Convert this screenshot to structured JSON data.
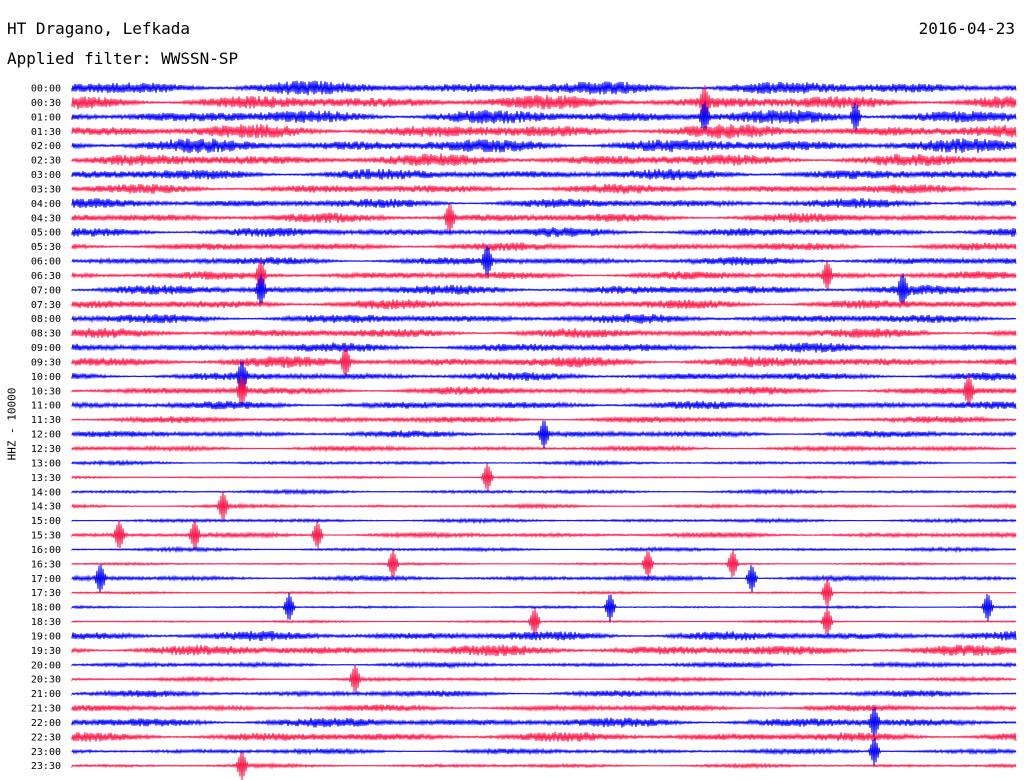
{
  "header": {
    "station": "HT Dragano, Lefkada",
    "date": "2016-04-23",
    "filter": "Applied filter: WWSSN-SP"
  },
  "channel_label": "HHZ - 10000",
  "colors": {
    "even_hour": "#0000ff",
    "half_hour": "#ff1a4b"
  },
  "rows": [
    {
      "time": "00:00",
      "activity": 9,
      "events": []
    },
    {
      "time": "00:30",
      "activity": 9,
      "events": [
        0.67
      ]
    },
    {
      "time": "01:00",
      "activity": 9,
      "events": [
        0.67,
        0.83
      ]
    },
    {
      "time": "01:30",
      "activity": 9,
      "events": []
    },
    {
      "time": "02:00",
      "activity": 9,
      "events": []
    },
    {
      "time": "02:30",
      "activity": 8,
      "events": []
    },
    {
      "time": "03:00",
      "activity": 7,
      "events": []
    },
    {
      "time": "03:30",
      "activity": 6,
      "events": []
    },
    {
      "time": "04:00",
      "activity": 6,
      "events": []
    },
    {
      "time": "04:30",
      "activity": 6,
      "events": [
        0.4
      ]
    },
    {
      "time": "05:00",
      "activity": 6,
      "events": []
    },
    {
      "time": "05:30",
      "activity": 5,
      "events": []
    },
    {
      "time": "06:00",
      "activity": 5,
      "events": [
        0.44
      ]
    },
    {
      "time": "06:30",
      "activity": 5,
      "events": [
        0.2,
        0.8
      ]
    },
    {
      "time": "07:00",
      "activity": 6,
      "events": [
        0.2,
        0.88
      ]
    },
    {
      "time": "07:30",
      "activity": 6,
      "events": []
    },
    {
      "time": "08:00",
      "activity": 6,
      "events": []
    },
    {
      "time": "08:30",
      "activity": 6,
      "events": []
    },
    {
      "time": "09:00",
      "activity": 6,
      "events": []
    },
    {
      "time": "09:30",
      "activity": 7,
      "events": [
        0.29
      ]
    },
    {
      "time": "10:00",
      "activity": 5,
      "events": [
        0.18
      ]
    },
    {
      "time": "10:30",
      "activity": 5,
      "events": [
        0.18,
        0.95
      ]
    },
    {
      "time": "11:00",
      "activity": 5,
      "events": []
    },
    {
      "time": "11:30",
      "activity": 4,
      "events": []
    },
    {
      "time": "12:00",
      "activity": 4,
      "events": [
        0.5
      ]
    },
    {
      "time": "12:30",
      "activity": 3,
      "events": []
    },
    {
      "time": "13:00",
      "activity": 2,
      "events": []
    },
    {
      "time": "13:30",
      "activity": 1,
      "events": [
        0.44
      ]
    },
    {
      "time": "14:00",
      "activity": 2,
      "events": []
    },
    {
      "time": "14:30",
      "activity": 2,
      "events": [
        0.16
      ]
    },
    {
      "time": "15:00",
      "activity": 2,
      "events": []
    },
    {
      "time": "15:30",
      "activity": 3,
      "events": [
        0.05,
        0.13,
        0.26
      ]
    },
    {
      "time": "16:00",
      "activity": 2,
      "events": []
    },
    {
      "time": "16:30",
      "activity": 1,
      "events": [
        0.34,
        0.61,
        0.7
      ]
    },
    {
      "time": "17:00",
      "activity": 3,
      "events": [
        0.03,
        0.72
      ]
    },
    {
      "time": "17:30",
      "activity": 1,
      "events": [
        0.8
      ]
    },
    {
      "time": "18:00",
      "activity": 1,
      "events": [
        0.23,
        0.57,
        0.97
      ]
    },
    {
      "time": "18:30",
      "activity": 1,
      "events": [
        0.49,
        0.8
      ]
    },
    {
      "time": "19:00",
      "activity": 6,
      "events": []
    },
    {
      "time": "19:30",
      "activity": 7,
      "events": []
    },
    {
      "time": "20:00",
      "activity": 3,
      "events": []
    },
    {
      "time": "20:30",
      "activity": 2,
      "events": [
        0.3
      ]
    },
    {
      "time": "21:00",
      "activity": 4,
      "events": []
    },
    {
      "time": "21:30",
      "activity": 4,
      "events": []
    },
    {
      "time": "22:00",
      "activity": 6,
      "events": [
        0.85
      ]
    },
    {
      "time": "22:30",
      "activity": 6,
      "events": []
    },
    {
      "time": "23:00",
      "activity": 3,
      "events": [
        0.85
      ]
    },
    {
      "time": "23:30",
      "activity": 2,
      "events": [
        0.18
      ]
    }
  ]
}
